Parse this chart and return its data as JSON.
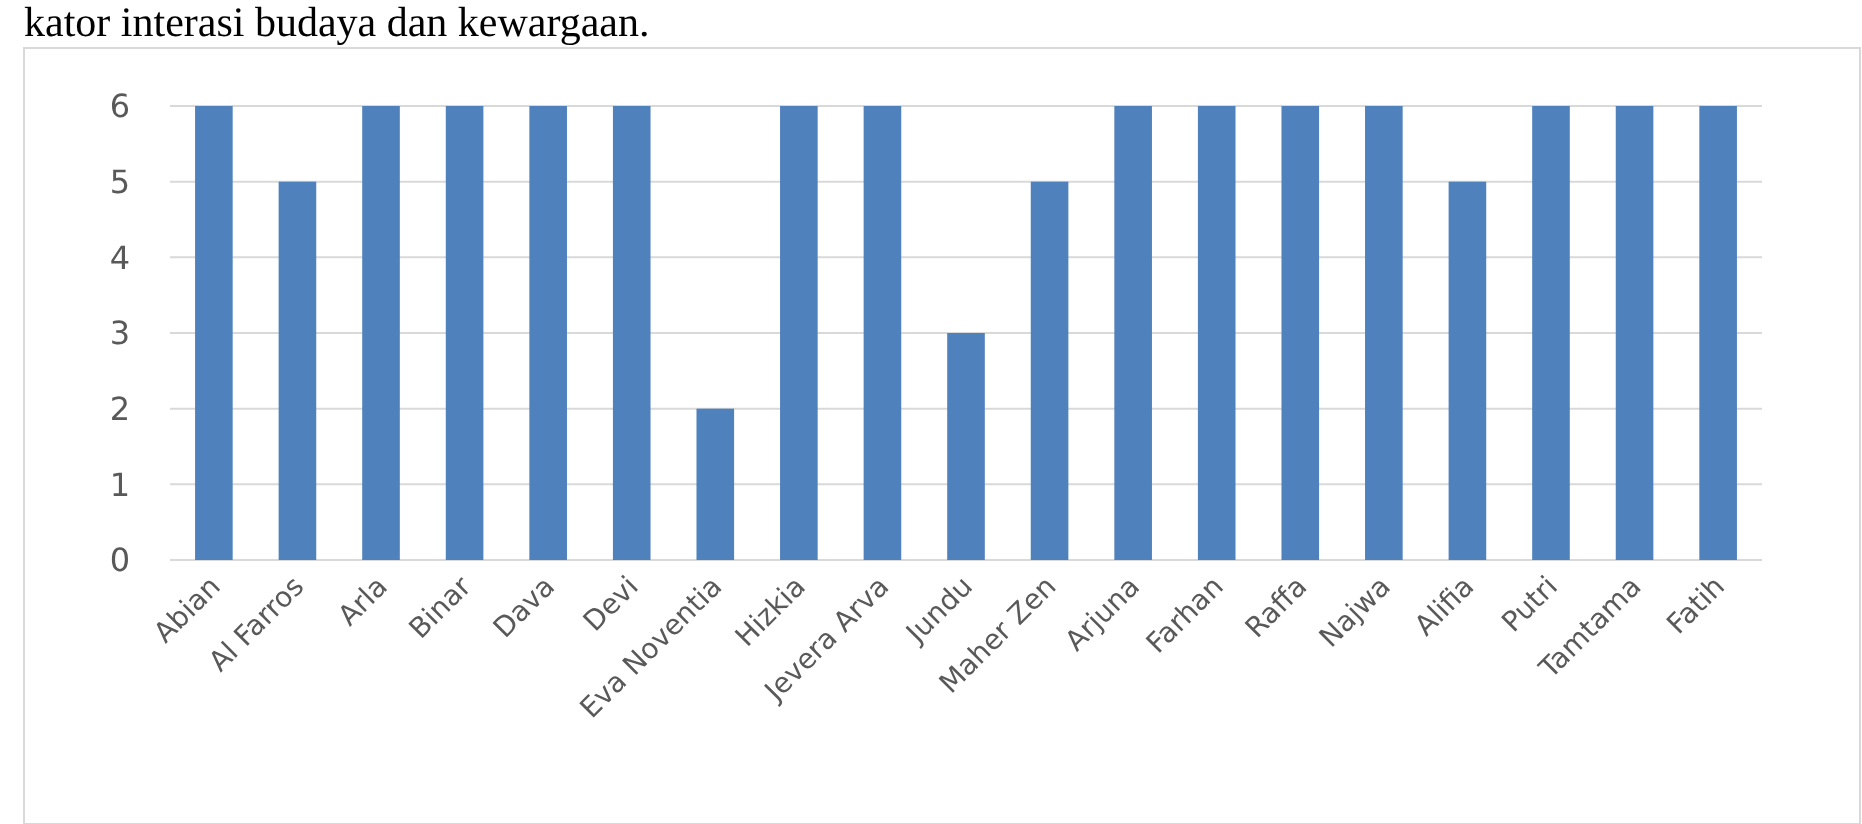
{
  "chart_data": {
    "type": "bar",
    "categories": [
      "Abian",
      "Al Farros",
      "Arla",
      "Binar",
      "Dava",
      "Devi",
      "Eva Noventia",
      "Hizkia",
      "Jevera Arva",
      "Jundu",
      "Maher Zen",
      "Arjuna",
      "Farhan",
      "Raffa",
      "Najwa",
      "Alifia",
      "Putri",
      "Tamtama",
      "Fatih"
    ],
    "values": [
      6,
      5,
      6,
      6,
      6,
      6,
      2,
      6,
      6,
      3,
      5,
      6,
      6,
      6,
      6,
      5,
      6,
      6,
      6
    ],
    "color": "#4f81bd",
    "ylim": [
      0,
      6
    ],
    "yticks": [
      0,
      1,
      2,
      3,
      4,
      5,
      6
    ],
    "grid": "y",
    "annotations": [
      "kator interasi budaya dan kewargaan."
    ]
  }
}
